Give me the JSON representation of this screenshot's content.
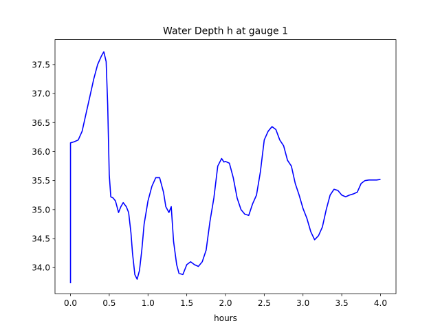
{
  "chart_data": {
    "type": "line",
    "title": "Water Depth h at gauge 1",
    "xlabel": "hours",
    "ylabel": "",
    "xlim": [
      -0.2,
      4.2
    ],
    "ylim": [
      33.55,
      37.93
    ],
    "xticks": [
      0.0,
      0.5,
      1.0,
      1.5,
      2.0,
      2.5,
      3.0,
      3.5,
      4.0
    ],
    "xtick_labels": [
      "0.0",
      "0.5",
      "1.0",
      "1.5",
      "2.0",
      "2.5",
      "3.0",
      "3.5",
      "4.0"
    ],
    "yticks": [
      34.0,
      34.5,
      35.0,
      35.5,
      36.0,
      36.5,
      37.0,
      37.5
    ],
    "ytick_labels": [
      "34.0",
      "34.5",
      "35.0",
      "35.5",
      "36.0",
      "36.5",
      "37.0",
      "37.5"
    ],
    "grid": false,
    "series": [
      {
        "color": "#0000ff",
        "x": [
          0.0,
          0.0,
          0.05,
          0.1,
          0.15,
          0.2,
          0.25,
          0.3,
          0.35,
          0.4,
          0.43,
          0.46,
          0.48,
          0.5,
          0.52,
          0.55,
          0.58,
          0.62,
          0.65,
          0.68,
          0.72,
          0.75,
          0.78,
          0.8,
          0.83,
          0.86,
          0.89,
          0.92,
          0.95,
          1.0,
          1.05,
          1.1,
          1.15,
          1.2,
          1.23,
          1.27,
          1.3,
          1.33,
          1.37,
          1.4,
          1.45,
          1.5,
          1.55,
          1.6,
          1.65,
          1.7,
          1.75,
          1.8,
          1.85,
          1.9,
          1.95,
          1.98,
          2.0,
          2.05,
          2.1,
          2.15,
          2.2,
          2.25,
          2.3,
          2.35,
          2.4,
          2.45,
          2.5,
          2.55,
          2.6,
          2.65,
          2.7,
          2.75,
          2.8,
          2.85,
          2.9,
          2.95,
          3.0,
          3.05,
          3.1,
          3.15,
          3.2,
          3.25,
          3.3,
          3.35,
          3.4,
          3.45,
          3.5,
          3.55,
          3.6,
          3.65,
          3.7,
          3.75,
          3.8,
          3.85,
          3.9,
          3.95,
          4.0
        ],
        "values": [
          33.73,
          36.15,
          36.17,
          36.2,
          36.35,
          36.65,
          36.95,
          37.25,
          37.5,
          37.65,
          37.72,
          37.55,
          36.8,
          35.6,
          35.22,
          35.2,
          35.15,
          34.95,
          35.05,
          35.12,
          35.05,
          34.95,
          34.6,
          34.25,
          33.88,
          33.8,
          33.95,
          34.3,
          34.75,
          35.15,
          35.4,
          35.55,
          35.55,
          35.3,
          35.05,
          34.95,
          35.05,
          34.45,
          34.05,
          33.9,
          33.88,
          34.05,
          34.1,
          34.05,
          34.02,
          34.1,
          34.3,
          34.8,
          35.2,
          35.75,
          35.88,
          35.82,
          35.83,
          35.8,
          35.55,
          35.2,
          35.0,
          34.92,
          34.9,
          35.1,
          35.25,
          35.65,
          36.2,
          36.35,
          36.43,
          36.38,
          36.2,
          36.1,
          35.85,
          35.75,
          35.45,
          35.25,
          35.02,
          34.85,
          34.62,
          34.48,
          34.55,
          34.7,
          35.0,
          35.25,
          35.35,
          35.33,
          35.25,
          35.22,
          35.25,
          35.27,
          35.3,
          35.45,
          35.5,
          35.51,
          35.51,
          35.51,
          35.52
        ]
      }
    ]
  }
}
